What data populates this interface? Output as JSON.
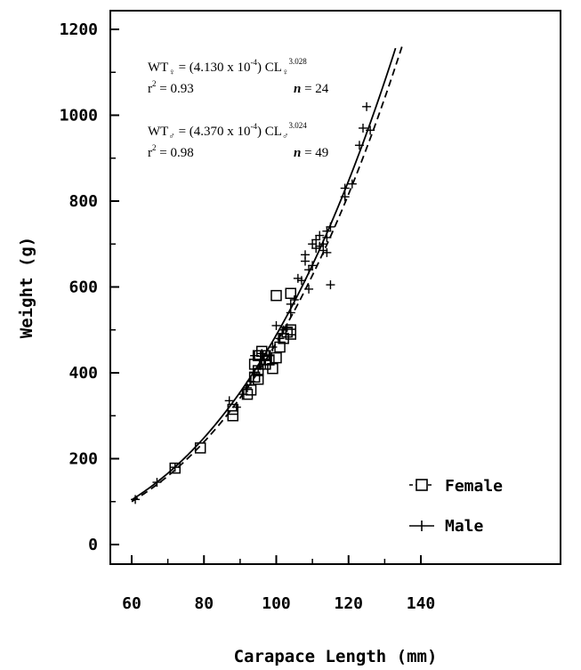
{
  "chart_data": {
    "type": "scatter",
    "xlabel": "Carapace Length (mm)",
    "ylabel": "Weight (g)",
    "xlim": [
      55,
      140
    ],
    "ylim": [
      -40,
      1250
    ],
    "x_ticks": [
      60,
      80,
      100,
      120,
      140
    ],
    "y_ticks": [
      0,
      200,
      400,
      600,
      800,
      1000,
      1200
    ],
    "grid": false,
    "legend_position": "bottom-right",
    "annotations": {
      "female_eq": {
        "prefix": "WT",
        "sub": "♀",
        "mid": " = (4.130 x 10",
        "exp": "-4",
        "end": ") CL",
        "sub2": "♀",
        "exp2": "3.028"
      },
      "female_r2": {
        "r": "r",
        "sup": "2",
        "value": " = 0.93"
      },
      "female_n": {
        "n": "n",
        "value": " = 24"
      },
      "male_eq": {
        "prefix": "WT",
        "sub": "♂",
        "mid": " = (4.370 x 10",
        "exp": "-4",
        "end": ") CL",
        "sub2": "♂",
        "exp2": "3.024"
      },
      "male_r2": {
        "r": "r",
        "sup": "2",
        "value": " = 0.98"
      },
      "male_n": {
        "n": "n",
        "value": " = 49"
      }
    },
    "series": [
      {
        "name": "Female",
        "marker": "square",
        "curve": "dashed",
        "model": {
          "a": 0.000413,
          "b": 3.028
        },
        "points": [
          [
            72,
            178
          ],
          [
            79,
            225
          ],
          [
            88,
            300
          ],
          [
            88,
            315
          ],
          [
            92,
            350
          ],
          [
            94,
            390
          ],
          [
            94,
            420
          ],
          [
            95,
            405
          ],
          [
            95,
            440
          ],
          [
            96,
            450
          ],
          [
            97,
            420
          ],
          [
            97,
            440
          ],
          [
            98,
            430
          ],
          [
            99,
            410
          ],
          [
            100,
            580
          ],
          [
            100,
            435
          ],
          [
            101,
            460
          ],
          [
            102,
            480
          ],
          [
            103,
            495
          ],
          [
            104,
            500
          ],
          [
            104,
            585
          ],
          [
            104,
            490
          ],
          [
            95,
            385
          ],
          [
            93,
            360
          ]
        ]
      },
      {
        "name": "Male",
        "marker": "plus",
        "curve": "solid",
        "model": {
          "a": 0.000437,
          "b": 3.024
        },
        "points": [
          [
            61,
            105
          ],
          [
            67,
            145
          ],
          [
            72,
            180
          ],
          [
            87,
            335
          ],
          [
            89,
            320
          ],
          [
            91,
            350
          ],
          [
            92,
            365
          ],
          [
            93,
            380
          ],
          [
            94,
            400
          ],
          [
            94,
            440
          ],
          [
            95,
            410
          ],
          [
            96,
            430
          ],
          [
            96,
            445
          ],
          [
            97,
            420
          ],
          [
            98,
            440
          ],
          [
            99,
            460
          ],
          [
            100,
            510
          ],
          [
            101,
            480
          ],
          [
            102,
            500
          ],
          [
            103,
            505
          ],
          [
            104,
            540
          ],
          [
            104,
            560
          ],
          [
            105,
            570
          ],
          [
            106,
            620
          ],
          [
            107,
            615
          ],
          [
            108,
            660
          ],
          [
            108,
            675
          ],
          [
            109,
            595
          ],
          [
            109,
            640
          ],
          [
            110,
            700
          ],
          [
            110,
            650
          ],
          [
            111,
            690
          ],
          [
            111,
            710
          ],
          [
            112,
            720
          ],
          [
            112,
            695
          ],
          [
            113,
            685
          ],
          [
            113,
            700
          ],
          [
            114,
            730
          ],
          [
            114,
            715
          ],
          [
            115,
            605
          ],
          [
            115,
            740
          ],
          [
            119,
            810
          ],
          [
            119,
            830
          ],
          [
            121,
            840
          ],
          [
            123,
            930
          ],
          [
            124,
            970
          ],
          [
            125,
            1020
          ],
          [
            126,
            965
          ],
          [
            114,
            680
          ]
        ]
      }
    ]
  }
}
